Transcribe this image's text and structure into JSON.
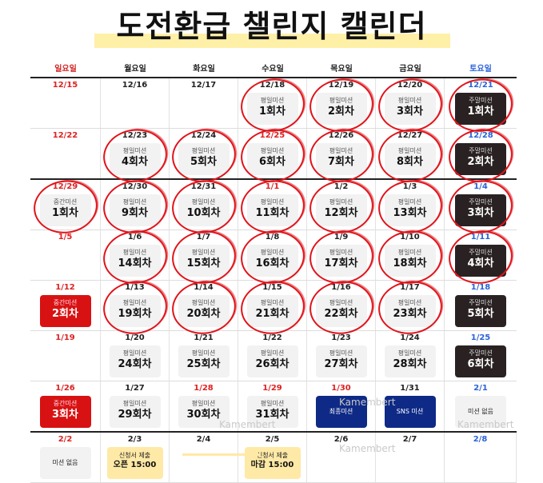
{
  "title": "도전환급 챌린지 캘린더",
  "weekdays": [
    {
      "label": "일요일",
      "color": "#d22222"
    },
    {
      "label": "월요일",
      "color": "#222222"
    },
    {
      "label": "화요일",
      "color": "#222222"
    },
    {
      "label": "수요일",
      "color": "#222222"
    },
    {
      "label": "목요일",
      "color": "#222222"
    },
    {
      "label": "금요일",
      "color": "#222222"
    },
    {
      "label": "토요일",
      "color": "#2962d9"
    }
  ],
  "weeks": [
    [
      {
        "date": "12/15",
        "date_color": "red"
      },
      {
        "date": "12/16"
      },
      {
        "date": "12/17"
      },
      {
        "date": "12/18",
        "card": {
          "style": "light",
          "sub": "평일미션",
          "main": "1회차"
        },
        "circled": true
      },
      {
        "date": "12/19",
        "card": {
          "style": "light",
          "sub": "평일미션",
          "main": "2회차"
        },
        "circled": true
      },
      {
        "date": "12/20",
        "card": {
          "style": "light",
          "sub": "평일미션",
          "main": "3회차"
        },
        "circled": true
      },
      {
        "date": "12/21",
        "date_color": "blue",
        "card": {
          "style": "dark",
          "sub": "주말미션",
          "main": "1회차"
        },
        "circled": true
      }
    ],
    [
      {
        "date": "12/22",
        "date_color": "red"
      },
      {
        "date": "12/23",
        "card": {
          "style": "light",
          "sub": "평일미션",
          "main": "4회차"
        },
        "circled": true
      },
      {
        "date": "12/24",
        "card": {
          "style": "light",
          "sub": "평일미션",
          "main": "5회차"
        },
        "circled": true
      },
      {
        "date": "12/25",
        "date_color": "red",
        "card": {
          "style": "light",
          "sub": "평일미션",
          "main": "6회차"
        },
        "circled": true
      },
      {
        "date": "12/26",
        "card": {
          "style": "light",
          "sub": "평일미션",
          "main": "7회차"
        },
        "circled": true
      },
      {
        "date": "12/27",
        "card": {
          "style": "light",
          "sub": "평일미션",
          "main": "8회차"
        },
        "circled": true
      },
      {
        "date": "12/28",
        "date_color": "blue",
        "card": {
          "style": "dark",
          "sub": "주말미션",
          "main": "2회차"
        },
        "circled": true
      }
    ],
    [
      {
        "date": "12/29",
        "date_color": "red",
        "card": {
          "style": "light",
          "sub": "중간미션",
          "main": "1회차"
        },
        "circled": true
      },
      {
        "date": "12/30",
        "card": {
          "style": "light",
          "sub": "평일미션",
          "main": "9회차"
        },
        "circled": true
      },
      {
        "date": "12/31",
        "card": {
          "style": "light",
          "sub": "평일미션",
          "main": "10회차"
        },
        "circled": true
      },
      {
        "date": "1/1",
        "date_color": "red",
        "card": {
          "style": "light",
          "sub": "평일미션",
          "main": "11회차"
        },
        "circled": true
      },
      {
        "date": "1/2",
        "card": {
          "style": "light",
          "sub": "평일미션",
          "main": "12회차"
        },
        "circled": true
      },
      {
        "date": "1/3",
        "card": {
          "style": "light",
          "sub": "평일미션",
          "main": "13회차"
        },
        "circled": true
      },
      {
        "date": "1/4",
        "date_color": "blue",
        "card": {
          "style": "dark",
          "sub": "주말미션",
          "main": "3회차"
        },
        "circled": true
      }
    ],
    [
      {
        "date": "1/5",
        "date_color": "red"
      },
      {
        "date": "1/6",
        "card": {
          "style": "light",
          "sub": "평일미션",
          "main": "14회차"
        },
        "circled": true
      },
      {
        "date": "1/7",
        "card": {
          "style": "light",
          "sub": "평일미션",
          "main": "15회차"
        },
        "circled": true
      },
      {
        "date": "1/8",
        "card": {
          "style": "light",
          "sub": "평일미션",
          "main": "16회차"
        },
        "circled": true
      },
      {
        "date": "1/9",
        "card": {
          "style": "light",
          "sub": "평일미션",
          "main": "17회차"
        },
        "circled": true
      },
      {
        "date": "1/10",
        "card": {
          "style": "light",
          "sub": "평일미션",
          "main": "18회차"
        },
        "circled": true
      },
      {
        "date": "1/11",
        "date_color": "blue",
        "card": {
          "style": "dark",
          "sub": "주말미션",
          "main": "4회차"
        },
        "circled": true
      }
    ],
    [
      {
        "date": "1/12",
        "date_color": "red",
        "card": {
          "style": "red",
          "sub": "중간미션",
          "main": "2회차"
        }
      },
      {
        "date": "1/13",
        "card": {
          "style": "light",
          "sub": "평일미션",
          "main": "19회차"
        },
        "circled": true
      },
      {
        "date": "1/14",
        "card": {
          "style": "light",
          "sub": "평일미션",
          "main": "20회차"
        },
        "circled": true
      },
      {
        "date": "1/15",
        "card": {
          "style": "light",
          "sub": "평일미션",
          "main": "21회차"
        },
        "circled": true
      },
      {
        "date": "1/16",
        "card": {
          "style": "light",
          "sub": "평일미션",
          "main": "22회차"
        },
        "circled": true
      },
      {
        "date": "1/17",
        "card": {
          "style": "light",
          "sub": "평일미션",
          "main": "23회차"
        },
        "circled": true
      },
      {
        "date": "1/18",
        "date_color": "blue",
        "card": {
          "style": "dark",
          "sub": "주말미션",
          "main": "5회차"
        }
      }
    ],
    [
      {
        "date": "1/19",
        "date_color": "red"
      },
      {
        "date": "1/20",
        "card": {
          "style": "light",
          "sub": "평일미션",
          "main": "24회차"
        }
      },
      {
        "date": "1/21",
        "card": {
          "style": "light",
          "sub": "평일미션",
          "main": "25회차"
        }
      },
      {
        "date": "1/22",
        "card": {
          "style": "light",
          "sub": "평일미션",
          "main": "26회차"
        }
      },
      {
        "date": "1/23",
        "card": {
          "style": "light",
          "sub": "평일미션",
          "main": "27회차"
        }
      },
      {
        "date": "1/24",
        "card": {
          "style": "light",
          "sub": "평일미션",
          "main": "28회차"
        }
      },
      {
        "date": "1/25",
        "date_color": "blue",
        "card": {
          "style": "dark",
          "sub": "주말미션",
          "main": "6회차"
        }
      }
    ],
    [
      {
        "date": "1/26",
        "date_color": "red",
        "card": {
          "style": "red",
          "sub": "중간미션",
          "main": "3회차"
        }
      },
      {
        "date": "1/27",
        "card": {
          "style": "light",
          "sub": "평일미션",
          "main": "29회차"
        }
      },
      {
        "date": "1/28",
        "date_color": "red",
        "card": {
          "style": "light",
          "sub": "평일미션",
          "main": "30회차"
        }
      },
      {
        "date": "1/29",
        "date_color": "red",
        "card": {
          "style": "light",
          "sub": "평일미션",
          "main": "31회차"
        }
      },
      {
        "date": "1/30",
        "date_color": "red",
        "card": {
          "style": "navy",
          "only": "최종미션"
        }
      },
      {
        "date": "1/31",
        "card": {
          "style": "navy",
          "only": "SNS 미션"
        }
      },
      {
        "date": "2/1",
        "date_color": "blue",
        "card": {
          "style": "plain",
          "only": "미션 없음"
        }
      }
    ],
    [
      {
        "date": "2/2",
        "date_color": "red",
        "card": {
          "style": "plain",
          "only": "미션 없음"
        }
      },
      {
        "date": "2/3",
        "card": {
          "style": "yellow",
          "sub": "신청서 제출",
          "main": "오픈 15:00"
        }
      },
      {
        "date": "2/4"
      },
      {
        "date": "2/5",
        "card": {
          "style": "yellow",
          "sub": "신청서 제출",
          "main": "마감 15:00"
        }
      },
      {
        "date": "2/6"
      },
      {
        "date": "2/7"
      },
      {
        "date": "2/8",
        "date_color": "blue"
      }
    ]
  ],
  "watermarks": [
    "Kamembert",
    "Kamembert",
    "Kamembert",
    "Kamembert"
  ],
  "colors": {
    "accent_red": "#e0141b",
    "dark_card": "#2a2222",
    "navy_card": "#0e2a86",
    "highlight": "#ffe9a6"
  }
}
